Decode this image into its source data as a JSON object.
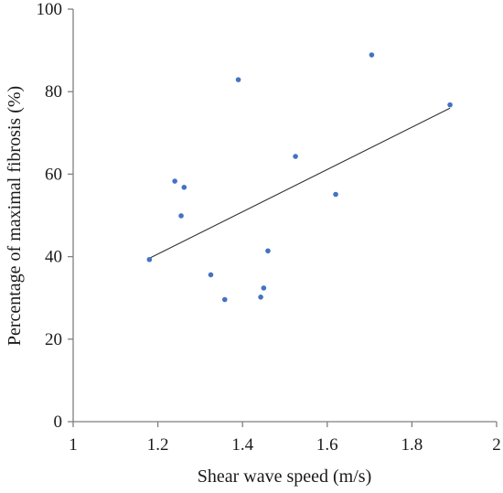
{
  "chart_data": {
    "type": "scatter",
    "xlabel": "Shear wave speed (m/s)",
    "ylabel": "Percentage of  maximal fibrosis (%)",
    "xlim": [
      1,
      2
    ],
    "ylim": [
      0,
      100
    ],
    "x_ticks": [
      1,
      1.2,
      1.4,
      1.6,
      1.8,
      2
    ],
    "x_tick_labels": [
      "1",
      "1.2",
      "1.4",
      "1.6",
      "1.8",
      "2"
    ],
    "y_ticks": [
      0,
      20,
      40,
      60,
      80,
      100
    ],
    "y_tick_labels": [
      "0",
      "20",
      "40",
      "60",
      "80",
      "100"
    ],
    "grid": false,
    "legend": "none",
    "series": [
      {
        "points": [
          {
            "x": 1.18,
            "y": 39.3
          },
          {
            "x": 1.24,
            "y": 58.3
          },
          {
            "x": 1.255,
            "y": 49.9
          },
          {
            "x": 1.262,
            "y": 56.8
          },
          {
            "x": 1.325,
            "y": 35.6
          },
          {
            "x": 1.358,
            "y": 29.6
          },
          {
            "x": 1.39,
            "y": 82.9
          },
          {
            "x": 1.443,
            "y": 30.2
          },
          {
            "x": 1.45,
            "y": 32.4
          },
          {
            "x": 1.46,
            "y": 41.4
          },
          {
            "x": 1.525,
            "y": 64.3
          },
          {
            "x": 1.62,
            "y": 55.1
          },
          {
            "x": 1.705,
            "y": 88.9
          },
          {
            "x": 1.89,
            "y": 76.8
          }
        ]
      }
    ],
    "trendline": {
      "type": "linear",
      "x_start": 1.18,
      "y_start": 39.6,
      "x_end": 1.89,
      "y_end": 76.0
    },
    "colors": {
      "marker": "#4472C4",
      "trendline": "#333333",
      "axis": "#7f7f7f",
      "text": "#1a1a1a"
    }
  }
}
